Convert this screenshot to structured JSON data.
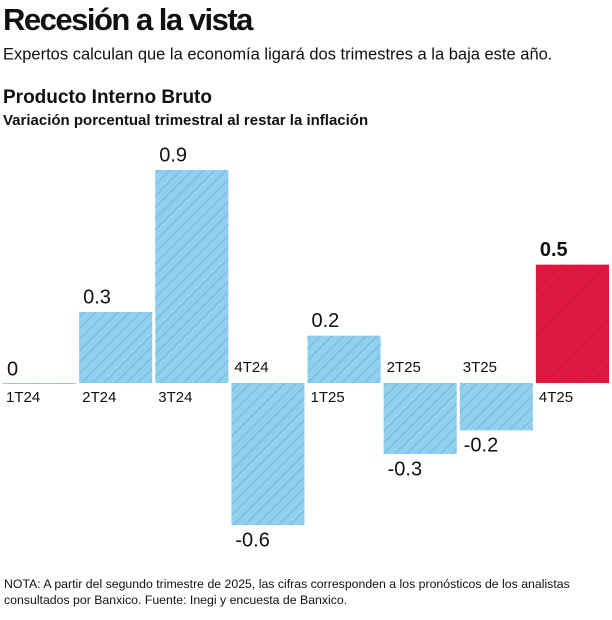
{
  "chart_data": {
    "type": "bar",
    "title": "Recesión a la vista",
    "subtitle": "Expertos calculan que la economía ligará dos trimestres a la baja este año.",
    "chart_title": "Producto Interno Bruto",
    "chart_subtitle": "Variación porcentual trimestral al restar la inflación",
    "categories": [
      "1T24",
      "2T24",
      "3T24",
      "4T24",
      "1T25",
      "2T25",
      "3T25",
      "4T25"
    ],
    "values": [
      0,
      0.3,
      0.9,
      -0.6,
      0.2,
      -0.3,
      -0.2,
      0.5
    ],
    "colors": [
      "#8fd0f0",
      "#8fd0f0",
      "#8fd0f0",
      "#8fd0f0",
      "#8fd0f0",
      "#8fd0f0",
      "#8fd0f0",
      "#e0173f"
    ],
    "ylim": [
      -0.6,
      0.9
    ],
    "note": "NOTA: A partir del segundo trimestre de 2025, las cifras corresponden a los pronósticos de los analistas consultados por Banxico. Fuente: Inegi y encuesta de Banxico."
  }
}
